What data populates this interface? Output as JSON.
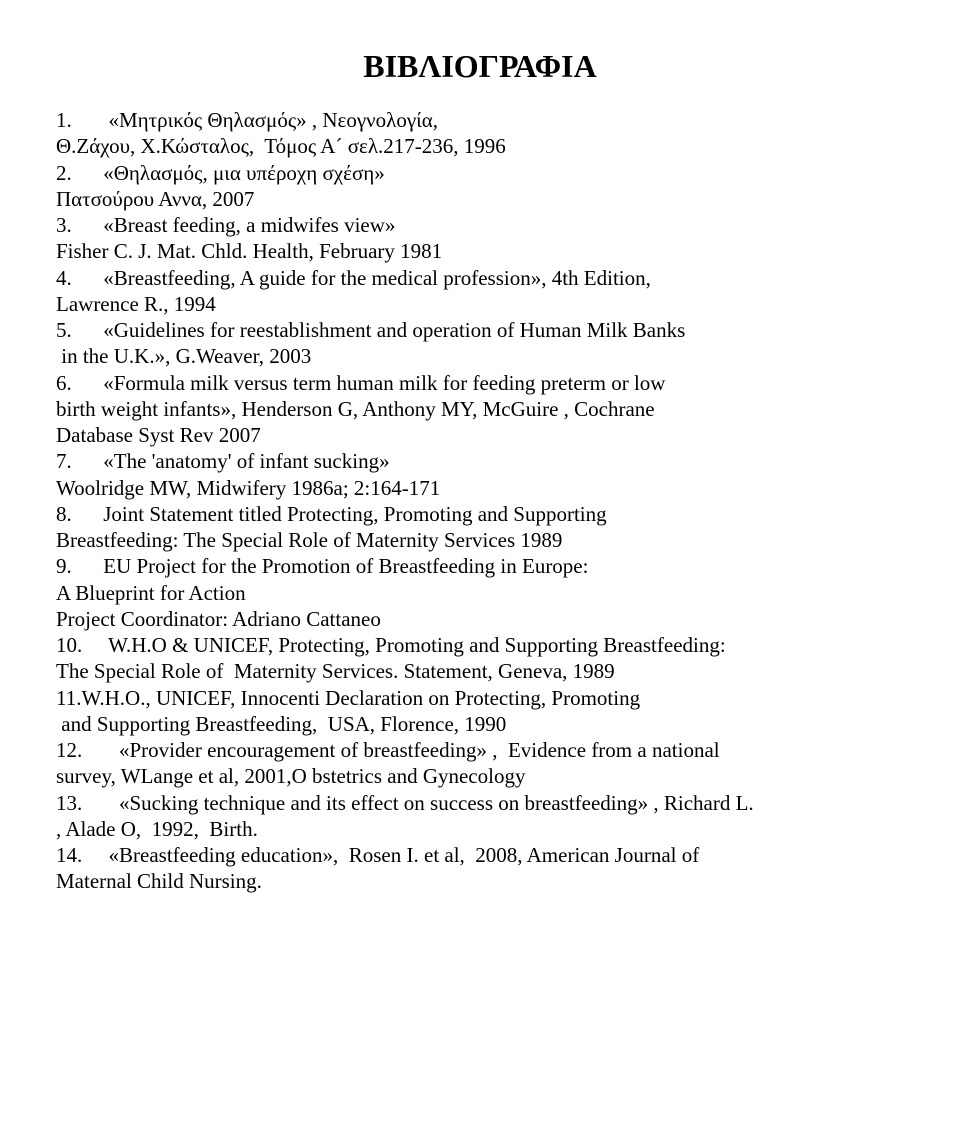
{
  "title": "ΒΙΒΛΙΟΓΡΑΦΙΑ",
  "text_color": "#000000",
  "background_color": "#ffffff",
  "title_fontsize": 32,
  "body_fontsize": 21,
  "entries": [
    "1.       «Μητρικός Θηλασμός» , Νεογνολογία,\nΘ.Ζάχου, Χ.Κώσταλος,  Τόμος Α´ σελ.217-236, 1996",
    "2.      «Θηλασμός, μια υπέροχη σχέση»\nΠατσούρου Αννα, 2007",
    "3.      «Breast feeding, a midwifes view»\nFisher C. J. Mat. Chld. Health, February 1981",
    "4.      «Breastfeeding, A guide for the medical profession», 4th Edition,\nLawrence R., 1994",
    "5.      «Guidelines for reestablishment and operation of Human Milk Banks\n in the U.K.», G.Weaver, 2003",
    "6.      «Formula milk versus term human milk for feeding preterm or low\nbirth weight infants», Henderson G, Anthony MY, McGuire , Cochrane\nDatabase Syst Rev 2007",
    "7.      «The 'anatomy' of infant sucking»\nWoolridge MW, Midwifery 1986a; 2:164-171",
    "8.      Joint Statement titled Protecting, Promoting and Supporting\nBreastfeeding: The Special Role of Maternity Services 1989",
    "9.      EU Project for the Promotion of Breastfeeding in Europe:\nA Blueprint for Action\nProject Coordinator: Adriano Cattaneo",
    "10.     W.H.O & UNICEF, Protecting, Promoting and Supporting Breastfeeding:\nThe Special Role of  Maternity Services. Statement, Geneva, 1989",
    "11.W.H.O., UNICEF, Innocenti Declaration on Protecting, Promoting\n and Supporting Breastfeeding,  USA, Florence, 1990",
    "12.       «Provider encouragement of breastfeeding» ,  Evidence from a national\nsurvey, WLange et al, 2001,O bstetrics and Gynecology",
    "13.       «Sucking technique and its effect on success on breastfeeding» , Richard L.\n, Alade O,  1992,  Birth.",
    "14.     «Breastfeeding education»,  Rosen I. et al,  2008, American Journal of\nMaternal Child Nursing."
  ]
}
